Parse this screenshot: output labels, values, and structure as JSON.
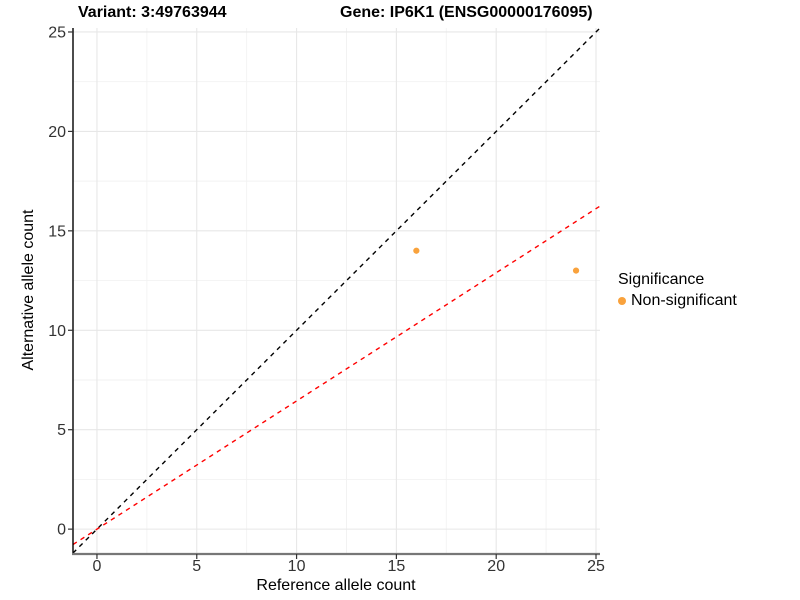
{
  "chart_data": {
    "type": "scatter",
    "title_left": "Variant: 3:49763944",
    "title_right": "Gene: IP6K1 (ENSG00000176095)",
    "xlabel": "Reference allele count",
    "ylabel": "Alternative allele count",
    "xlim": [
      -1.2,
      25.2
    ],
    "ylim": [
      -1.2,
      25.2
    ],
    "x_ticks": [
      0,
      5,
      10,
      15,
      20,
      25
    ],
    "y_ticks": [
      0,
      5,
      10,
      15,
      20,
      25
    ],
    "minor_ticks": [
      2.5,
      7.5,
      12.5,
      17.5,
      22.5
    ],
    "grid": true,
    "points": [
      {
        "x": 16,
        "y": 14,
        "significance": "Non-significant"
      },
      {
        "x": 24,
        "y": 13,
        "significance": "Non-significant"
      }
    ],
    "point_color": "#F9A23C",
    "point_radius": 3.1,
    "lines": [
      {
        "name": "identity-line",
        "slope": 1,
        "intercept": 0,
        "color": "#000000",
        "style": "dashed"
      },
      {
        "name": "fit-line",
        "slope": 0.6446,
        "intercept": 0,
        "color": "#FF0000",
        "style": "dashed"
      }
    ],
    "legend": {
      "title": "Significance",
      "position": "right",
      "items": [
        {
          "label": "Non-significant",
          "color": "#F9A23C"
        }
      ]
    },
    "colors": {
      "grid_major": "#E7E7E7",
      "grid_minor": "#F2F2F2",
      "axis_line_y": "#000000",
      "axis_line_x": "#777777",
      "tick_label": "#333333",
      "tick_mark": "#333333"
    }
  }
}
